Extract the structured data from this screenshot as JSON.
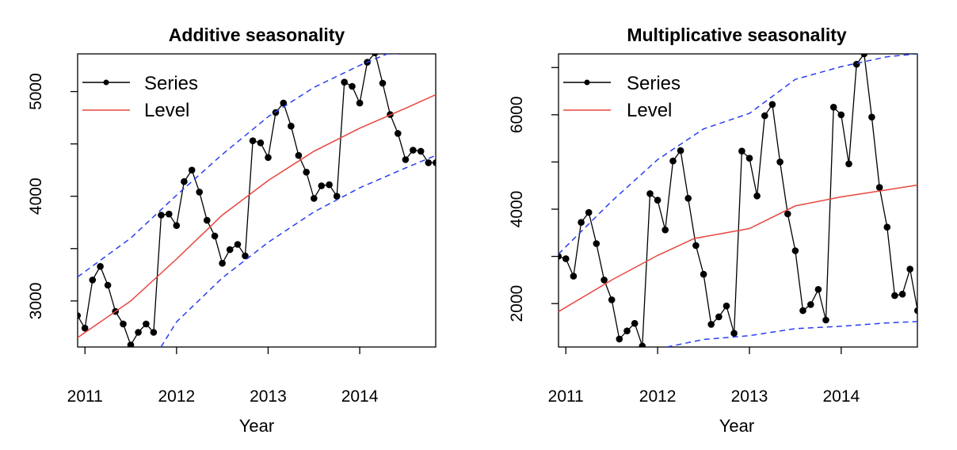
{
  "chart_data": [
    {
      "type": "line",
      "title": "Additive seasonality",
      "xlabel": "Year",
      "ylabel": "",
      "xlim": [
        2010.92,
        2014.83
      ],
      "ylim": [
        2560,
        5360
      ],
      "x_ticks": [
        2011,
        2012,
        2013,
        2014
      ],
      "y_ticks": [
        3000,
        4000,
        5000
      ],
      "y_minor_ticks": [
        3500,
        4500
      ],
      "legend": {
        "position": "top-left",
        "entries": [
          "Series",
          "Level"
        ]
      },
      "series": [
        {
          "name": "Series",
          "color": "#000000",
          "x": [
            2010.917,
            2011.0,
            2011.083,
            2011.167,
            2011.25,
            2011.333,
            2011.417,
            2011.5,
            2011.583,
            2011.667,
            2011.75,
            2011.833,
            2011.917,
            2012.0,
            2012.083,
            2012.167,
            2012.25,
            2012.333,
            2012.417,
            2012.5,
            2012.583,
            2012.667,
            2012.75,
            2012.833,
            2012.917,
            2013.0,
            2013.083,
            2013.167,
            2013.25,
            2013.333,
            2013.417,
            2013.5,
            2013.583,
            2013.667,
            2013.75,
            2013.833,
            2013.917,
            2014.0,
            2014.083,
            2014.167,
            2014.25,
            2014.333,
            2014.417,
            2014.5,
            2014.583,
            2014.667,
            2014.75,
            2014.833
          ],
          "values": [
            2860,
            2740,
            3200,
            3330,
            3150,
            2900,
            2780,
            2580,
            2700,
            2780,
            2700,
            3820,
            3830,
            3720,
            4140,
            4250,
            4040,
            3770,
            3620,
            3360,
            3490,
            3540,
            3430,
            4530,
            4510,
            4370,
            4800,
            4890,
            4670,
            4390,
            4230,
            3980,
            4100,
            4110,
            4000,
            5090,
            5050,
            4890,
            5280,
            5370,
            5080,
            4780,
            4600,
            4350,
            4440,
            4430,
            4320,
            4320
          ]
        },
        {
          "name": "Level",
          "color": "#e8463e",
          "x": [
            2010.92,
            2011.5,
            2012.0,
            2012.5,
            2013.0,
            2013.5,
            2014.0,
            2014.5,
            2014.83
          ],
          "values": [
            2650,
            3000,
            3400,
            3820,
            4150,
            4430,
            4650,
            4840,
            4970
          ]
        },
        {
          "name": "Upper bound",
          "color": "#2a3ff0",
          "x": [
            2010.92,
            2011.5,
            2012.0,
            2012.5,
            2013.0,
            2013.5,
            2014.0,
            2014.3,
            2014.83
          ],
          "values": [
            3230,
            3600,
            4010,
            4400,
            4760,
            5040,
            5250,
            5360,
            5380
          ]
        },
        {
          "name": "Lower bound",
          "color": "#2a3ff0",
          "x": [
            2011.83,
            2012.0,
            2012.5,
            2013.0,
            2013.5,
            2014.0,
            2014.5,
            2014.83
          ],
          "values": [
            2560,
            2800,
            3220,
            3560,
            3850,
            4080,
            4270,
            4390
          ]
        }
      ]
    },
    {
      "type": "line",
      "title": "Multiplicative seasonality",
      "xlabel": "Year",
      "ylabel": "",
      "xlim": [
        2010.92,
        2014.83
      ],
      "ylim": [
        1080,
        7290
      ],
      "x_ticks": [
        2011,
        2012,
        2013,
        2014
      ],
      "y_ticks": [
        2000,
        4000,
        6000
      ],
      "y_minor_ticks": [
        3000,
        5000,
        7000
      ],
      "legend": {
        "position": "top-left",
        "entries": [
          "Series",
          "Level"
        ]
      },
      "series": [
        {
          "name": "Series",
          "color": "#000000",
          "x": [
            2010.917,
            2011.0,
            2011.083,
            2011.167,
            2011.25,
            2011.333,
            2011.417,
            2011.5,
            2011.583,
            2011.667,
            2011.75,
            2011.833,
            2011.917,
            2012.0,
            2012.083,
            2012.167,
            2012.25,
            2012.333,
            2012.417,
            2012.5,
            2012.583,
            2012.667,
            2012.75,
            2012.833,
            2012.917,
            2013.0,
            2013.083,
            2013.167,
            2013.25,
            2013.333,
            2013.417,
            2013.5,
            2013.583,
            2013.667,
            2013.75,
            2013.833,
            2013.917,
            2014.0,
            2014.083,
            2014.167,
            2014.25,
            2014.333,
            2014.417,
            2014.5,
            2014.583,
            2014.667,
            2014.75,
            2014.833
          ],
          "values": [
            3000,
            2950,
            2580,
            3720,
            3930,
            3270,
            2500,
            2080,
            1250,
            1420,
            1580,
            1100,
            4330,
            4190,
            3560,
            5020,
            5240,
            4230,
            3230,
            2620,
            1560,
            1720,
            1950,
            1370,
            5230,
            5080,
            4280,
            5980,
            6220,
            5000,
            3900,
            3120,
            1850,
            1980,
            2300,
            1650,
            6160,
            6000,
            4960,
            7070,
            7290,
            5950,
            4460,
            3620,
            2170,
            2200,
            2730,
            1850
          ]
        },
        {
          "name": "Level",
          "color": "#e8463e",
          "x": [
            2010.92,
            2011.5,
            2012.0,
            2012.4,
            2013.0,
            2013.5,
            2014.0,
            2014.5,
            2014.83
          ],
          "values": [
            1830,
            2500,
            3020,
            3380,
            3590,
            4070,
            4260,
            4410,
            4510
          ]
        },
        {
          "name": "Upper bound",
          "color": "#2a3ff0",
          "x": [
            2010.92,
            2011.5,
            2012.0,
            2012.5,
            2013.0,
            2013.5,
            2014.0,
            2014.5,
            2014.83
          ],
          "values": [
            3050,
            4170,
            5050,
            5700,
            6030,
            6750,
            7020,
            7230,
            7290
          ]
        },
        {
          "name": "Lower bound",
          "color": "#2a3ff0",
          "x": [
            2012.1,
            2012.5,
            2013.0,
            2013.5,
            2014.0,
            2014.5,
            2014.83
          ],
          "values": [
            1080,
            1240,
            1320,
            1470,
            1520,
            1590,
            1620
          ]
        }
      ]
    }
  ]
}
